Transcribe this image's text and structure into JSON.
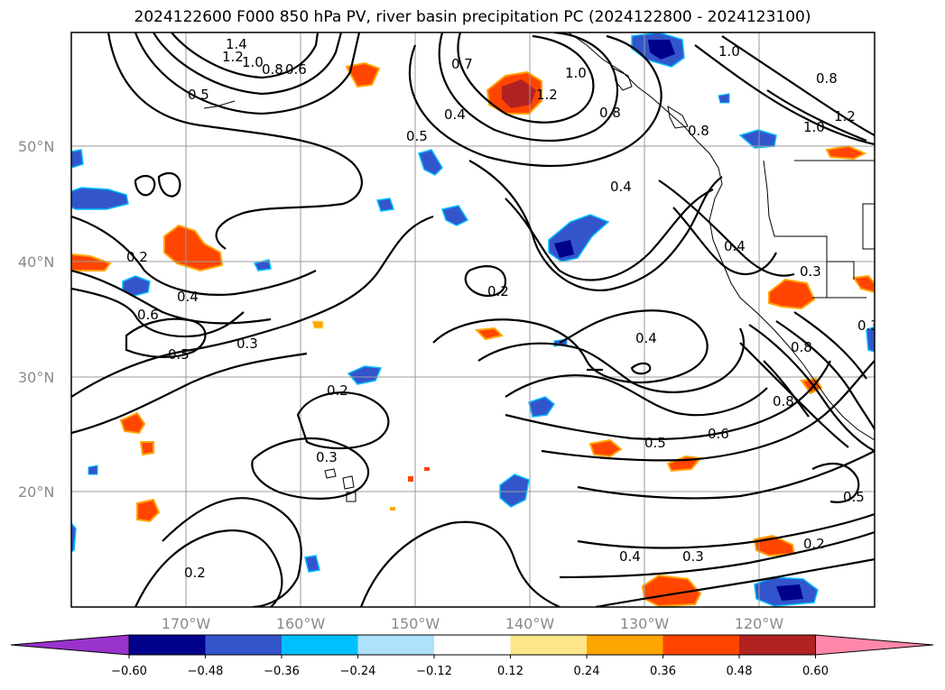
{
  "title": "2024122600 F000 850 hPa PV, river basin precipitation PC (2024122800 - 2024123100)",
  "lat_labels": [
    "50°N",
    "40°N",
    "30°N",
    "20°N"
  ],
  "lon_labels": [
    "170°W",
    "160°W",
    "150°W",
    "140°W",
    "130°W",
    "120°W"
  ],
  "contour_labels": [
    "1.4",
    "1.2",
    "1.0",
    "0.8",
    "0.6",
    "0.5",
    "0.7",
    "0.4",
    "1.0",
    "1.2",
    "1.0",
    "0.8",
    "0.8",
    "0.5",
    "0.2",
    "0.4",
    "0.6",
    "0.5",
    "0.3",
    "0.2",
    "0.2",
    "0.4",
    "0.4",
    "0.3",
    "0.3",
    "0.2",
    "0.3",
    "0.5",
    "0.6",
    "0.8",
    "0.4",
    "0.3",
    "0.2",
    "0.5",
    "1.0",
    "1.2",
    "0.8",
    "0.4",
    "0.8"
  ],
  "colorbar": {
    "ticks": [
      "−0.60",
      "−0.48",
      "−0.36",
      "−0.24",
      "−0.12",
      "0.12",
      "0.24",
      "0.36",
      "0.48",
      "0.60"
    ],
    "colors": [
      "#9933cc",
      "#00008b",
      "#3355cc",
      "#00bfff",
      "#aee2fa",
      "#ffffff",
      "#fde68a",
      "#ffa500",
      "#ff4500",
      "#b22222",
      "#ff88aa"
    ]
  },
  "map_data": {
    "variable": "850 hPa PV with river basin precipitation PC shading",
    "lon_range": [
      -180,
      -110
    ],
    "lat_range": [
      10,
      60
    ]
  }
}
